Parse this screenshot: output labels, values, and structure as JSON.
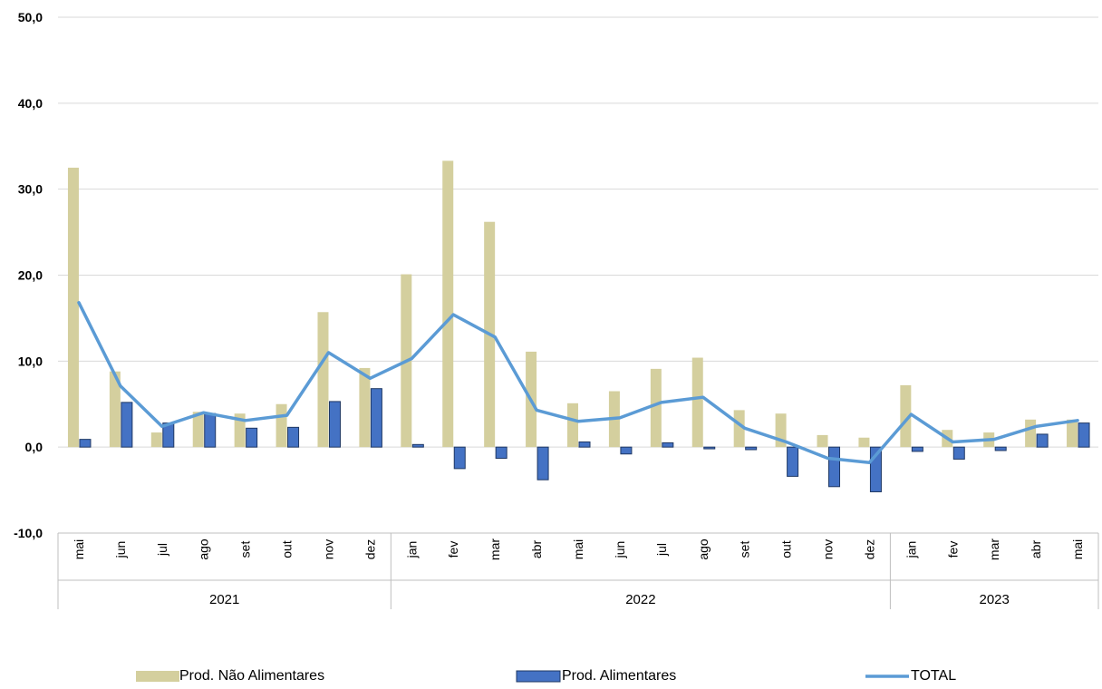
{
  "chart_data": {
    "type": "bar",
    "title": "",
    "xlabel": "",
    "ylabel": "",
    "ylim": [
      -10,
      50
    ],
    "yticks": [
      "50,0",
      "40,0",
      "30,0",
      "20,0",
      "10,0",
      "0,0",
      "-10,0"
    ],
    "grid": true,
    "legend_position": "bottom",
    "categories": [
      "mai",
      "jun",
      "jul",
      "ago",
      "set",
      "out",
      "nov",
      "dez",
      "jan",
      "fev",
      "mar",
      "abr",
      "mai",
      "jun",
      "jul",
      "ago",
      "set",
      "out",
      "nov",
      "dez",
      "jan",
      "fev",
      "mar",
      "abr",
      "mai"
    ],
    "year_groups": [
      {
        "label": "2021",
        "count": 8
      },
      {
        "label": "2022",
        "count": 12
      },
      {
        "label": "2023",
        "count": 5
      }
    ],
    "series": [
      {
        "name": "Prod. Não Alimentares",
        "kind": "bar",
        "color": "#d4cf9e",
        "values": [
          32.5,
          8.8,
          1.7,
          4.1,
          3.9,
          5.0,
          15.7,
          9.2,
          20.1,
          33.3,
          26.2,
          11.1,
          5.1,
          6.5,
          9.1,
          10.4,
          4.3,
          3.9,
          1.4,
          1.1,
          7.2,
          2.0,
          1.7,
          3.2,
          3.2
        ]
      },
      {
        "name": "Prod. Alimentares",
        "kind": "bar",
        "color": "#4472c4",
        "values": [
          0.9,
          5.2,
          2.8,
          3.9,
          2.2,
          2.3,
          5.3,
          6.8,
          0.3,
          -2.5,
          -1.3,
          -3.8,
          0.6,
          -0.8,
          0.5,
          -0.2,
          -0.3,
          -3.4,
          -4.6,
          -5.2,
          -0.5,
          -1.4,
          -0.4,
          1.5,
          2.8
        ]
      },
      {
        "name": "TOTAL",
        "kind": "line",
        "color": "#5b9bd5",
        "values": [
          16.8,
          7.1,
          2.4,
          4.0,
          3.1,
          3.7,
          11.0,
          8.0,
          10.3,
          15.4,
          12.8,
          4.3,
          3.0,
          3.4,
          5.2,
          5.8,
          2.2,
          0.6,
          -1.3,
          -1.8,
          3.8,
          0.6,
          0.9,
          2.4,
          3.1
        ]
      }
    ]
  }
}
